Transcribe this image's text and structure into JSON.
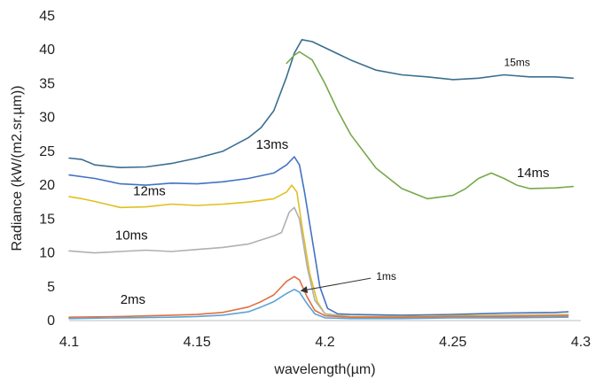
{
  "chart_data": {
    "type": "line",
    "title": "",
    "xlabel": "wavelength(µm)",
    "ylabel": "Radiance (kW/(m2.sr.µm))",
    "xlim": [
      4.1,
      4.3
    ],
    "ylim": [
      0,
      45
    ],
    "x_ticks": [
      "4.1",
      "4.15",
      "4.2",
      "4.25",
      "4.3"
    ],
    "x_tick_values": [
      4.1,
      4.15,
      4.2,
      4.25,
      4.3
    ],
    "y_ticks": [
      "0",
      "5",
      "10",
      "15",
      "20",
      "25",
      "30",
      "35",
      "40",
      "45"
    ],
    "y_tick_values": [
      0,
      5,
      10,
      15,
      20,
      25,
      30,
      35,
      40,
      45
    ],
    "grid": false,
    "legend": "none",
    "series": [
      {
        "name": "15ms",
        "color": "#3a6e8f",
        "points": [
          [
            4.1,
            24.0
          ],
          [
            4.105,
            23.8
          ],
          [
            4.11,
            23.0
          ],
          [
            4.12,
            22.6
          ],
          [
            4.13,
            22.7
          ],
          [
            4.14,
            23.2
          ],
          [
            4.15,
            24.0
          ],
          [
            4.16,
            25.0
          ],
          [
            4.17,
            27.0
          ],
          [
            4.175,
            28.5
          ],
          [
            4.18,
            31.0
          ],
          [
            4.185,
            36.0
          ],
          [
            4.188,
            39.5
          ],
          [
            4.191,
            41.5
          ],
          [
            4.195,
            41.2
          ],
          [
            4.2,
            40.3
          ],
          [
            4.21,
            38.5
          ],
          [
            4.22,
            37.0
          ],
          [
            4.23,
            36.3
          ],
          [
            4.24,
            36.0
          ],
          [
            4.25,
            35.6
          ],
          [
            4.26,
            35.8
          ],
          [
            4.27,
            36.3
          ],
          [
            4.28,
            36.0
          ],
          [
            4.29,
            36.0
          ],
          [
            4.297,
            35.8
          ]
        ]
      },
      {
        "name": "14ms",
        "color": "#77a84a",
        "points": [
          [
            4.185,
            38.0
          ],
          [
            4.188,
            39.2
          ],
          [
            4.19,
            39.7
          ],
          [
            4.195,
            38.5
          ],
          [
            4.2,
            35.0
          ],
          [
            4.205,
            31.0
          ],
          [
            4.21,
            27.5
          ],
          [
            4.22,
            22.5
          ],
          [
            4.23,
            19.5
          ],
          [
            4.24,
            18.0
          ],
          [
            4.25,
            18.5
          ],
          [
            4.255,
            19.5
          ],
          [
            4.26,
            21.0
          ],
          [
            4.265,
            21.8
          ],
          [
            4.27,
            21.0
          ],
          [
            4.275,
            20.0
          ],
          [
            4.28,
            19.5
          ],
          [
            4.29,
            19.6
          ],
          [
            4.297,
            19.8
          ]
        ]
      },
      {
        "name": "13ms",
        "color": "#4472c4",
        "points": [
          [
            4.1,
            21.5
          ],
          [
            4.11,
            21.0
          ],
          [
            4.12,
            20.2
          ],
          [
            4.13,
            20.0
          ],
          [
            4.14,
            20.3
          ],
          [
            4.15,
            20.2
          ],
          [
            4.16,
            20.5
          ],
          [
            4.17,
            21.0
          ],
          [
            4.18,
            21.8
          ],
          [
            4.185,
            23.0
          ],
          [
            4.188,
            24.2
          ],
          [
            4.19,
            23.0
          ],
          [
            4.192,
            19.0
          ],
          [
            4.195,
            12.0
          ],
          [
            4.198,
            5.0
          ],
          [
            4.201,
            1.8
          ],
          [
            4.205,
            1.0
          ],
          [
            4.21,
            0.9
          ],
          [
            4.23,
            0.8
          ],
          [
            4.25,
            0.9
          ],
          [
            4.27,
            1.1
          ],
          [
            4.29,
            1.2
          ],
          [
            4.295,
            1.3
          ]
        ]
      },
      {
        "name": "12ms",
        "color": "#e0c020",
        "points": [
          [
            4.1,
            18.3
          ],
          [
            4.105,
            18.0
          ],
          [
            4.11,
            17.6
          ],
          [
            4.12,
            16.7
          ],
          [
            4.13,
            16.8
          ],
          [
            4.14,
            17.2
          ],
          [
            4.15,
            17.0
          ],
          [
            4.16,
            17.2
          ],
          [
            4.17,
            17.5
          ],
          [
            4.18,
            18.0
          ],
          [
            4.185,
            19.0
          ],
          [
            4.187,
            20.0
          ],
          [
            4.189,
            19.0
          ],
          [
            4.191,
            14.0
          ],
          [
            4.194,
            7.0
          ],
          [
            4.197,
            2.8
          ],
          [
            4.2,
            1.0
          ],
          [
            4.21,
            0.6
          ],
          [
            4.23,
            0.6
          ],
          [
            4.25,
            0.7
          ],
          [
            4.27,
            0.8
          ],
          [
            4.295,
            0.9
          ]
        ]
      },
      {
        "name": "10ms",
        "color": "#b0b0b0",
        "points": [
          [
            4.1,
            10.3
          ],
          [
            4.11,
            10.0
          ],
          [
            4.12,
            10.2
          ],
          [
            4.13,
            10.4
          ],
          [
            4.14,
            10.2
          ],
          [
            4.15,
            10.5
          ],
          [
            4.16,
            10.8
          ],
          [
            4.17,
            11.3
          ],
          [
            4.18,
            12.5
          ],
          [
            4.183,
            13.0
          ],
          [
            4.186,
            16.0
          ],
          [
            4.188,
            16.7
          ],
          [
            4.19,
            15.0
          ],
          [
            4.193,
            8.0
          ],
          [
            4.196,
            3.0
          ],
          [
            4.2,
            1.0
          ],
          [
            4.21,
            0.5
          ],
          [
            4.23,
            0.5
          ],
          [
            4.25,
            0.6
          ],
          [
            4.27,
            0.7
          ],
          [
            4.295,
            0.8
          ]
        ]
      },
      {
        "name": "2ms",
        "color": "#e07040",
        "points": [
          [
            4.1,
            0.5
          ],
          [
            4.12,
            0.6
          ],
          [
            4.14,
            0.8
          ],
          [
            4.15,
            0.9
          ],
          [
            4.16,
            1.2
          ],
          [
            4.17,
            2.0
          ],
          [
            4.175,
            2.8
          ],
          [
            4.18,
            3.8
          ],
          [
            4.185,
            5.8
          ],
          [
            4.188,
            6.5
          ],
          [
            4.19,
            6.0
          ],
          [
            4.193,
            3.5
          ],
          [
            4.196,
            1.5
          ],
          [
            4.2,
            0.7
          ],
          [
            4.21,
            0.5
          ],
          [
            4.23,
            0.5
          ],
          [
            4.25,
            0.6
          ],
          [
            4.27,
            0.6
          ],
          [
            4.295,
            0.7
          ]
        ]
      },
      {
        "name": "1ms",
        "color": "#5ba3d6",
        "points": [
          [
            4.1,
            0.3
          ],
          [
            4.12,
            0.4
          ],
          [
            4.14,
            0.5
          ],
          [
            4.15,
            0.6
          ],
          [
            4.16,
            0.8
          ],
          [
            4.17,
            1.3
          ],
          [
            4.175,
            2.0
          ],
          [
            4.18,
            2.8
          ],
          [
            4.185,
            4.0
          ],
          [
            4.188,
            4.6
          ],
          [
            4.19,
            4.2
          ],
          [
            4.193,
            2.5
          ],
          [
            4.196,
            1.0
          ],
          [
            4.2,
            0.4
          ],
          [
            4.21,
            0.3
          ],
          [
            4.23,
            0.3
          ],
          [
            4.25,
            0.4
          ],
          [
            4.27,
            0.4
          ],
          [
            4.295,
            0.5
          ]
        ]
      }
    ],
    "annotations": [
      {
        "text": "15ms",
        "x": 4.27,
        "y": 37.6,
        "size": "small"
      },
      {
        "text": "14ms",
        "x": 4.275,
        "y": 21.2,
        "size": "normal"
      },
      {
        "text": "13ms",
        "x": 4.173,
        "y": 25.4,
        "size": "normal"
      },
      {
        "text": "12ms",
        "x": 4.125,
        "y": 18.5,
        "size": "normal"
      },
      {
        "text": "10ms",
        "x": 4.118,
        "y": 12.0,
        "size": "normal"
      },
      {
        "text": "2ms",
        "x": 4.12,
        "y": 2.5,
        "size": "normal"
      },
      {
        "text": "1ms",
        "x": 4.22,
        "y": 6.0,
        "size": "small",
        "arrow_to": [
          4.19,
          4.4
        ]
      }
    ]
  }
}
